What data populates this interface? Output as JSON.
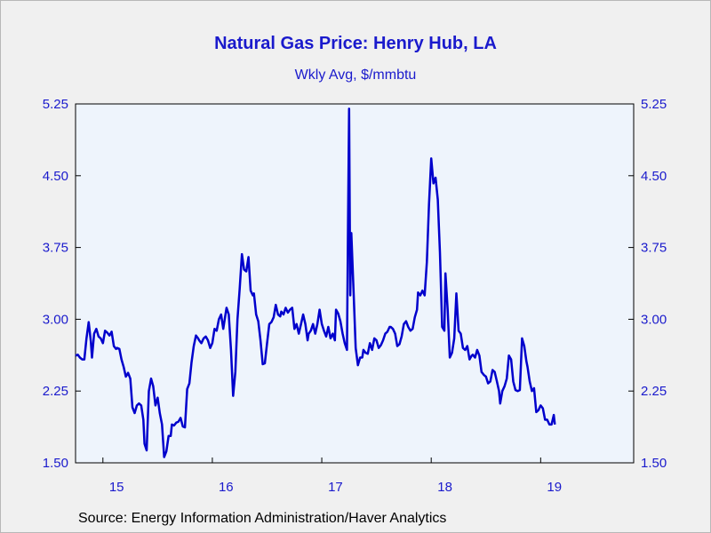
{
  "title": "Natural Gas Price: Henry Hub, LA",
  "subtitle": "Wkly Avg, $/mmbtu",
  "source": "Source:  Energy Information Administration/Haver Analytics",
  "colors": {
    "line": "#0000cc",
    "axis_text": "#1a1acc",
    "plot_bg": "#eef4fc",
    "page_bg": "#f0f0f0"
  },
  "chart_data": {
    "type": "line",
    "title": "Natural Gas Price: Henry Hub, LA",
    "subtitle": "Wkly Avg, $/mmbtu",
    "xlabel": "",
    "ylabel": "",
    "ylim": [
      1.5,
      5.25
    ],
    "xlim": [
      2014.75,
      2019.85
    ],
    "y_ticks": [
      "1.50",
      "2.25",
      "3.00",
      "3.75",
      "4.50",
      "5.25"
    ],
    "x_ticks": [
      "15",
      "16",
      "17",
      "18",
      "19"
    ],
    "grid": false,
    "dual_y_axis": true,
    "series": [
      {
        "values": [
          [
            2014.75,
            2.62
          ],
          [
            2014.77,
            2.63
          ],
          [
            2014.79,
            2.6
          ],
          [
            2014.81,
            2.58
          ],
          [
            2014.83,
            2.58
          ],
          [
            2014.85,
            2.8
          ],
          [
            2014.87,
            2.97
          ],
          [
            2014.89,
            2.77
          ],
          [
            2014.9,
            2.6
          ],
          [
            2014.92,
            2.85
          ],
          [
            2014.94,
            2.9
          ],
          [
            2014.96,
            2.82
          ],
          [
            2014.98,
            2.8
          ],
          [
            2015.0,
            2.75
          ],
          [
            2015.02,
            2.88
          ],
          [
            2015.04,
            2.86
          ],
          [
            2015.06,
            2.83
          ],
          [
            2015.08,
            2.87
          ],
          [
            2015.1,
            2.72
          ],
          [
            2015.12,
            2.69
          ],
          [
            2015.13,
            2.7
          ],
          [
            2015.15,
            2.69
          ],
          [
            2015.17,
            2.58
          ],
          [
            2015.19,
            2.5
          ],
          [
            2015.21,
            2.4
          ],
          [
            2015.23,
            2.44
          ],
          [
            2015.25,
            2.38
          ],
          [
            2015.27,
            2.08
          ],
          [
            2015.29,
            2.02
          ],
          [
            2015.31,
            2.1
          ],
          [
            2015.33,
            2.12
          ],
          [
            2015.35,
            2.1
          ],
          [
            2015.37,
            1.95
          ],
          [
            2015.38,
            1.7
          ],
          [
            2015.4,
            1.63
          ],
          [
            2015.42,
            2.25
          ],
          [
            2015.44,
            2.38
          ],
          [
            2015.46,
            2.3
          ],
          [
            2015.48,
            2.1
          ],
          [
            2015.5,
            2.18
          ],
          [
            2015.52,
            2.02
          ],
          [
            2015.54,
            1.9
          ],
          [
            2015.56,
            1.56
          ],
          [
            2015.58,
            1.62
          ],
          [
            2015.6,
            1.78
          ],
          [
            2015.62,
            1.78
          ],
          [
            2015.63,
            1.9
          ],
          [
            2015.65,
            1.89
          ],
          [
            2015.67,
            1.92
          ],
          [
            2015.69,
            1.93
          ],
          [
            2015.71,
            1.97
          ],
          [
            2015.73,
            1.88
          ],
          [
            2015.75,
            1.87
          ],
          [
            2015.77,
            2.27
          ],
          [
            2015.79,
            2.33
          ],
          [
            2015.81,
            2.55
          ],
          [
            2015.83,
            2.72
          ],
          [
            2015.85,
            2.83
          ],
          [
            2015.87,
            2.8
          ],
          [
            2015.88,
            2.78
          ],
          [
            2015.9,
            2.75
          ],
          [
            2015.92,
            2.8
          ],
          [
            2015.94,
            2.82
          ],
          [
            2015.96,
            2.78
          ],
          [
            2015.98,
            2.7
          ],
          [
            2016.0,
            2.75
          ],
          [
            2016.02,
            2.9
          ],
          [
            2016.04,
            2.88
          ],
          [
            2016.06,
            3.0
          ],
          [
            2016.08,
            3.05
          ],
          [
            2016.1,
            2.9
          ],
          [
            2016.12,
            3.05
          ],
          [
            2016.13,
            3.12
          ],
          [
            2016.15,
            3.05
          ],
          [
            2016.17,
            2.68
          ],
          [
            2016.19,
            2.2
          ],
          [
            2016.21,
            2.45
          ],
          [
            2016.23,
            3.0
          ],
          [
            2016.25,
            3.32
          ],
          [
            2016.27,
            3.68
          ],
          [
            2016.29,
            3.52
          ],
          [
            2016.31,
            3.5
          ],
          [
            2016.33,
            3.65
          ],
          [
            2016.35,
            3.3
          ],
          [
            2016.37,
            3.25
          ],
          [
            2016.38,
            3.27
          ],
          [
            2016.4,
            3.05
          ],
          [
            2016.42,
            2.98
          ],
          [
            2016.44,
            2.78
          ],
          [
            2016.46,
            2.53
          ],
          [
            2016.48,
            2.54
          ],
          [
            2016.5,
            2.75
          ],
          [
            2016.52,
            2.95
          ],
          [
            2016.54,
            2.97
          ],
          [
            2016.56,
            3.02
          ],
          [
            2016.58,
            3.15
          ],
          [
            2016.6,
            3.05
          ],
          [
            2016.62,
            3.03
          ],
          [
            2016.63,
            3.08
          ],
          [
            2016.65,
            3.05
          ],
          [
            2016.67,
            3.12
          ],
          [
            2016.69,
            3.07
          ],
          [
            2016.71,
            3.1
          ],
          [
            2016.73,
            3.12
          ],
          [
            2016.75,
            2.9
          ],
          [
            2016.77,
            2.95
          ],
          [
            2016.79,
            2.85
          ],
          [
            2016.81,
            2.95
          ],
          [
            2016.83,
            3.05
          ],
          [
            2016.85,
            2.95
          ],
          [
            2016.87,
            2.78
          ],
          [
            2016.88,
            2.85
          ],
          [
            2016.9,
            2.88
          ],
          [
            2016.92,
            2.95
          ],
          [
            2016.94,
            2.85
          ],
          [
            2016.96,
            2.95
          ],
          [
            2016.98,
            3.1
          ],
          [
            2017.0,
            2.95
          ],
          [
            2017.02,
            2.88
          ],
          [
            2017.04,
            2.82
          ],
          [
            2017.06,
            2.92
          ],
          [
            2017.08,
            2.8
          ],
          [
            2017.1,
            2.85
          ],
          [
            2017.12,
            2.78
          ],
          [
            2017.13,
            3.1
          ],
          [
            2017.15,
            3.06
          ],
          [
            2017.17,
            2.98
          ],
          [
            2017.19,
            2.85
          ],
          [
            2017.21,
            2.75
          ],
          [
            2017.23,
            2.68
          ],
          [
            2017.24,
            4.0
          ],
          [
            2017.25,
            5.2
          ],
          [
            2017.26,
            3.25
          ],
          [
            2017.27,
            3.9
          ],
          [
            2017.29,
            3.3
          ],
          [
            2017.31,
            2.7
          ],
          [
            2017.33,
            2.52
          ],
          [
            2017.35,
            2.6
          ],
          [
            2017.37,
            2.6
          ],
          [
            2017.38,
            2.68
          ],
          [
            2017.4,
            2.65
          ],
          [
            2017.42,
            2.64
          ],
          [
            2017.44,
            2.75
          ],
          [
            2017.46,
            2.68
          ],
          [
            2017.48,
            2.8
          ],
          [
            2017.5,
            2.78
          ],
          [
            2017.52,
            2.7
          ],
          [
            2017.54,
            2.73
          ],
          [
            2017.56,
            2.78
          ],
          [
            2017.58,
            2.85
          ],
          [
            2017.6,
            2.87
          ],
          [
            2017.62,
            2.92
          ],
          [
            2017.63,
            2.92
          ],
          [
            2017.65,
            2.9
          ],
          [
            2017.67,
            2.85
          ],
          [
            2017.69,
            2.72
          ],
          [
            2017.71,
            2.74
          ],
          [
            2017.73,
            2.82
          ],
          [
            2017.75,
            2.95
          ],
          [
            2017.77,
            2.98
          ],
          [
            2017.79,
            2.92
          ],
          [
            2017.81,
            2.88
          ],
          [
            2017.83,
            2.9
          ],
          [
            2017.85,
            3.02
          ],
          [
            2017.87,
            3.1
          ],
          [
            2017.88,
            3.28
          ],
          [
            2017.9,
            3.25
          ],
          [
            2017.92,
            3.3
          ],
          [
            2017.94,
            3.25
          ],
          [
            2017.96,
            3.6
          ],
          [
            2017.98,
            4.2
          ],
          [
            2018.0,
            4.68
          ],
          [
            2018.02,
            4.42
          ],
          [
            2018.04,
            4.48
          ],
          [
            2018.06,
            4.25
          ],
          [
            2018.08,
            3.7
          ],
          [
            2018.1,
            2.92
          ],
          [
            2018.12,
            2.88
          ],
          [
            2018.13,
            3.48
          ],
          [
            2018.15,
            3.1
          ],
          [
            2018.17,
            2.6
          ],
          [
            2018.19,
            2.65
          ],
          [
            2018.21,
            2.8
          ],
          [
            2018.23,
            3.27
          ],
          [
            2018.25,
            2.88
          ],
          [
            2018.27,
            2.85
          ],
          [
            2018.29,
            2.7
          ],
          [
            2018.31,
            2.68
          ],
          [
            2018.33,
            2.72
          ],
          [
            2018.35,
            2.58
          ],
          [
            2018.37,
            2.62
          ],
          [
            2018.38,
            2.63
          ],
          [
            2018.4,
            2.6
          ],
          [
            2018.42,
            2.68
          ],
          [
            2018.44,
            2.62
          ],
          [
            2018.46,
            2.45
          ],
          [
            2018.48,
            2.42
          ],
          [
            2018.5,
            2.4
          ],
          [
            2018.52,
            2.33
          ],
          [
            2018.54,
            2.35
          ],
          [
            2018.56,
            2.47
          ],
          [
            2018.58,
            2.45
          ],
          [
            2018.6,
            2.35
          ],
          [
            2018.62,
            2.25
          ],
          [
            2018.63,
            2.12
          ],
          [
            2018.65,
            2.25
          ],
          [
            2018.67,
            2.3
          ],
          [
            2018.69,
            2.38
          ],
          [
            2018.71,
            2.62
          ],
          [
            2018.73,
            2.58
          ],
          [
            2018.75,
            2.35
          ],
          [
            2018.77,
            2.26
          ],
          [
            2018.79,
            2.25
          ],
          [
            2018.81,
            2.26
          ],
          [
            2018.83,
            2.8
          ],
          [
            2018.85,
            2.72
          ],
          [
            2018.87,
            2.56
          ],
          [
            2018.88,
            2.5
          ],
          [
            2018.9,
            2.35
          ],
          [
            2018.92,
            2.25
          ],
          [
            2018.94,
            2.28
          ],
          [
            2018.96,
            2.03
          ],
          [
            2018.98,
            2.05
          ],
          [
            2019.0,
            2.1
          ],
          [
            2019.02,
            2.07
          ],
          [
            2019.04,
            1.95
          ],
          [
            2019.06,
            1.95
          ],
          [
            2019.08,
            1.9
          ],
          [
            2019.1,
            1.9
          ],
          [
            2019.12,
            2.0
          ],
          [
            2019.13,
            1.9
          ]
        ]
      }
    ]
  }
}
